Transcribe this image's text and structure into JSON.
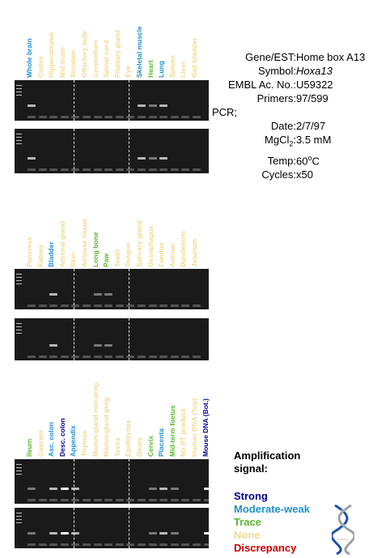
{
  "colors": {
    "strong": "#00008b",
    "moderate": "#1e90d0",
    "trace": "#5ab82a",
    "none": "#f0d890",
    "discrepancy": "#cc0000"
  },
  "panels": [
    {
      "tissues": [
        {
          "name": "Whole brain",
          "level": "moderate"
        },
        {
          "name": "Cortex",
          "level": "none"
        },
        {
          "name": "Hippocampus",
          "level": "none"
        },
        {
          "name": "Mid brain",
          "level": "none"
        },
        {
          "name": "Striatum",
          "level": "none"
        },
        {
          "name": "Olfactory bulb",
          "level": "none"
        },
        {
          "name": "Cerebellum",
          "level": "none"
        },
        {
          "name": "Spinal cord",
          "level": "none"
        },
        {
          "name": "Pituitary gland",
          "level": "none"
        },
        {
          "name": "Eye",
          "level": "none"
        },
        {
          "name": "Skeletal muscle",
          "level": "moderate"
        },
        {
          "name": "Heart",
          "level": "trace"
        },
        {
          "name": "Lung",
          "level": "moderate"
        },
        {
          "name": "Spleen",
          "level": "none"
        },
        {
          "name": "Liver",
          "level": "none"
        },
        {
          "name": "Gall bladder",
          "level": "none"
        }
      ]
    },
    {
      "tissues": [
        {
          "name": "Pancreas",
          "level": "none"
        },
        {
          "name": "Kidney",
          "level": "none"
        },
        {
          "name": "Bladder",
          "level": "moderate"
        },
        {
          "name": "Adrenal gland",
          "level": "none"
        },
        {
          "name": "Skin",
          "level": "none"
        },
        {
          "name": "Adipose tissue",
          "level": "none"
        },
        {
          "name": "Long bone",
          "level": "trace"
        },
        {
          "name": "Paw",
          "level": "trace"
        },
        {
          "name": "Teeth",
          "level": "none"
        },
        {
          "name": "Tongue",
          "level": "none"
        },
        {
          "name": "Salivary gland",
          "level": "none"
        },
        {
          "name": "Oesophagus",
          "level": "none"
        },
        {
          "name": "Fundus",
          "level": "none"
        },
        {
          "name": "Antrum",
          "level": "none"
        },
        {
          "name": "Duodenum",
          "level": "none"
        },
        {
          "name": "Jejunum",
          "level": "none"
        }
      ]
    },
    {
      "tissues": [
        {
          "name": "Ileum",
          "level": "trace"
        },
        {
          "name": "Caecum",
          "level": "none"
        },
        {
          "name": "Asc. colon",
          "level": "moderate"
        },
        {
          "name": "Desc. colon",
          "level": "strong"
        },
        {
          "name": "Appendix",
          "level": "moderate"
        },
        {
          "name": "Thymus",
          "level": "none"
        },
        {
          "name": "Mamm.gland non-preg.",
          "level": "none"
        },
        {
          "name": "Mamm.gland preg.",
          "level": "none"
        },
        {
          "name": "Testis",
          "level": "none"
        },
        {
          "name": "Epididymis",
          "level": "none"
        },
        {
          "name": "Ovary",
          "level": "none"
        },
        {
          "name": "Cervix",
          "level": "trace"
        },
        {
          "name": "Placenta",
          "level": "moderate"
        },
        {
          "name": "Mid-term foetus",
          "level": "trace"
        },
        {
          "name": "No RT product",
          "level": "none"
        },
        {
          "name": "Human DNA (Top)",
          "level": "none"
        },
        {
          "name": "Mouse DNA (Bot.)",
          "level": "strong"
        }
      ]
    }
  ],
  "info": {
    "gene_label": "Gene/EST:",
    "gene_value": "Home box A13",
    "symbol_label": "Symbol:",
    "symbol_value": "Hoxa13",
    "embl_label": "EMBL Ac. No.:",
    "embl_value": "U59322",
    "primers_label": "Primers:",
    "primers_value": "97/599",
    "pcr_label": "PCR;",
    "date_label": "Date:",
    "date_value": "2/7/97",
    "mgcl_label": "MgCl",
    "mgcl_sub": "2",
    "mgcl_colon": ":",
    "mgcl_value": "3.5 mM",
    "temp_label": "Temp:",
    "temp_value": "60",
    "temp_sup": "o",
    "temp_unit": "C",
    "cycles_label": "Cycles:",
    "cycles_value": "x50"
  },
  "legend": {
    "title_line1": "Amplification",
    "title_line2": "signal:",
    "strong": "Strong",
    "moderate": "Moderate-weak",
    "trace": "Trace",
    "none": "None",
    "discrepancy": "Discrepancy"
  }
}
